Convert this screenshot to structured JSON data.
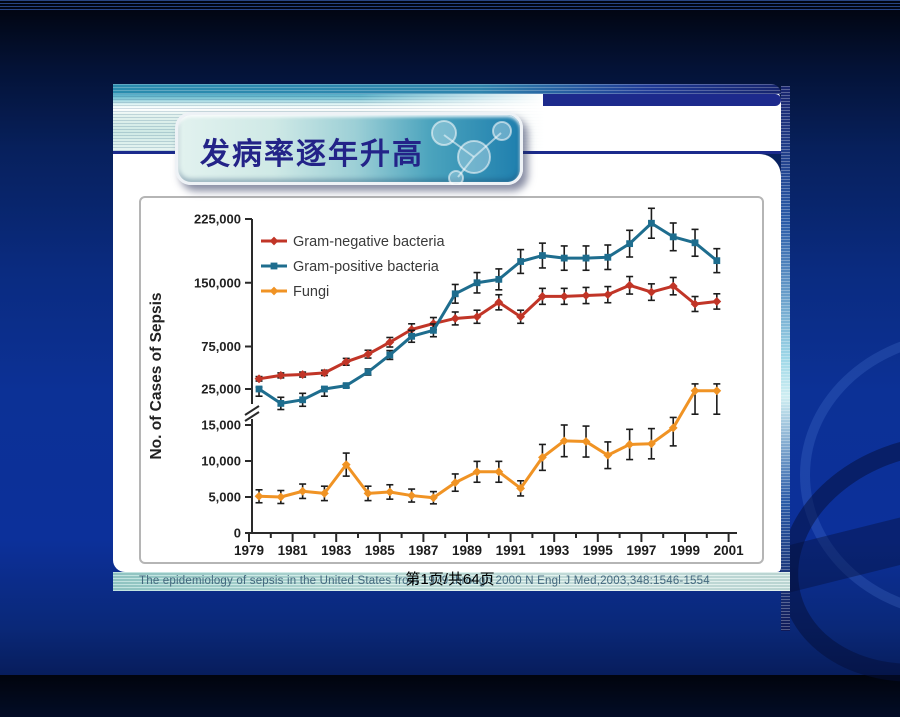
{
  "slide": {
    "title": "发病率逐年升高",
    "caption": "The epidemiology of sepsis in the United States from 1979 through 2000 N Engl J Med,2003,348:1546-1554",
    "page_indicator": "第1页/共64页"
  },
  "colors": {
    "gram_negative": "#c13527",
    "gram_positive": "#1e6d8e",
    "fungi": "#f09324",
    "axis": "#2a2a2a",
    "error_bar": "#1c1c1c",
    "banner_title": "#232388",
    "divider_navy": "#1b2a8c"
  },
  "chart_data": {
    "type": "line",
    "title": "",
    "xlabel": "",
    "ylabel": "No. of Cases of Sepsis",
    "x": [
      1979,
      1980,
      1981,
      1982,
      1983,
      1984,
      1985,
      1986,
      1987,
      1988,
      1989,
      1990,
      1991,
      1992,
      1993,
      1994,
      1995,
      1996,
      1997,
      1998,
      1999,
      2000
    ],
    "x_axis_ticks": [
      1979,
      1980,
      1981,
      1982,
      1983,
      1984,
      1985,
      1986,
      1987,
      1988,
      1989,
      1990,
      1991,
      1992,
      1993,
      1994,
      1995,
      1996,
      1997,
      1998,
      1999,
      2000,
      2001
    ],
    "x_labeled_years": [
      1979,
      1981,
      1983,
      1985,
      1987,
      1989,
      1991,
      1993,
      1995,
      1997,
      1999,
      2001
    ],
    "axis_break": {
      "lower_section_max": 15000,
      "upper_section_min": 25000
    },
    "y_ticks_upper": [
      225000,
      150000,
      75000,
      25000
    ],
    "y_ticks_lower": [
      15000,
      10000,
      5000,
      0
    ],
    "grid": false,
    "legend_position": "top-left",
    "error_bars": true,
    "series": [
      {
        "name": "Gram-negative bacteria",
        "color": "#c13527",
        "marker": "diamond",
        "values": [
          37000,
          41000,
          42000,
          44000,
          57000,
          66000,
          80000,
          95000,
          102000,
          108000,
          110000,
          127000,
          110000,
          134000,
          134000,
          135000,
          136000,
          147000,
          139000,
          146000,
          125000,
          128000
        ],
        "err": [
          2600,
          2900,
          2900,
          3100,
          4000,
          4600,
          5600,
          6700,
          7100,
          7600,
          7700,
          8900,
          7700,
          9400,
          9400,
          9500,
          9500,
          10300,
          9700,
          10200,
          8800,
          9000
        ]
      },
      {
        "name": "Gram-positive bacteria",
        "color": "#1e6d8e",
        "marker": "square",
        "values": [
          25000,
          21000,
          22000,
          25000,
          29000,
          45000,
          65000,
          87000,
          94000,
          137000,
          150000,
          154000,
          175000,
          182000,
          179000,
          179000,
          180000,
          196000,
          220000,
          204000,
          197000,
          176000
        ],
        "err": [
          2000,
          1700,
          1800,
          2000,
          2300,
          3600,
          5200,
          7000,
          7500,
          11000,
          12000,
          12300,
          14000,
          14600,
          14300,
          14300,
          14400,
          15700,
          17600,
          16300,
          15800,
          14100
        ]
      },
      {
        "name": "Fungi",
        "color": "#f09324",
        "marker": "diamond",
        "values": [
          5100,
          5000,
          5800,
          5500,
          9500,
          5500,
          5700,
          5200,
          4900,
          7000,
          8500,
          8500,
          6200,
          10500,
          12800,
          12700,
          10800,
          12300,
          12400,
          14600,
          24500,
          24500
        ],
        "err": [
          900,
          900,
          1000,
          1000,
          1600,
          1000,
          1000,
          900,
          850,
          1200,
          1450,
          1450,
          1050,
          1800,
          2200,
          2150,
          1850,
          2100,
          2100,
          2500,
          6500,
          6500
        ]
      }
    ]
  }
}
